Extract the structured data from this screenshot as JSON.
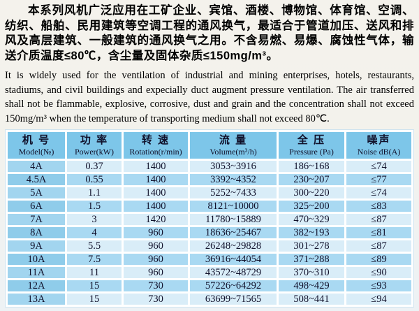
{
  "page": {
    "background_top": "#f4f2ec",
    "background_bottom": "#edf2f5"
  },
  "intro_zh": {
    "text": "本系列风机广泛应用在工矿企业、宾馆、酒楼、博物馆、体育馆、空调、纺织、船舶、民用建筑等空调工程的通风换气，最适合于管道加压、送风和排风及高层建筑、一般建筑的通风换气之用。不含易燃、易爆、腐蚀性气体，输送介质温度≤80℃，含尘量及固体杂质≤150mg/m³。"
  },
  "intro_en": {
    "text": "It is widely used for the ventilation of industrial and mining enterprises, hotels, restaurants, stadiums, and civil buildings and expecially duct augment pressure ventilation. The air transferred shall not be flammable, explosive, corrosive, dust and grain and the concentration shall not exceed 150mg/m³ when the temperature of transporting medium shall not exceed 80℃."
  },
  "spec_table": {
    "columns": [
      {
        "zh": "机 号",
        "en": "Model(№)"
      },
      {
        "zh": "功 率",
        "en": "Power(kW)"
      },
      {
        "zh": "转 速",
        "en": "Rotation(r/min)"
      },
      {
        "zh": "流 量",
        "en": "Volume(m³/h)"
      },
      {
        "zh": "全 压",
        "en": "Pressure (Pa)"
      },
      {
        "zh": "噪声",
        "en": "Noise dB(A)"
      }
    ],
    "rows": [
      [
        "4A",
        "0.37",
        "1400",
        "3053~3916",
        "186~168",
        "≤74"
      ],
      [
        "4.5A",
        "0.55",
        "1400",
        "3392~4352",
        "230~207",
        "≤77"
      ],
      [
        "5A",
        "1.1",
        "1400",
        "5252~7433",
        "300~220",
        "≤74"
      ],
      [
        "6A",
        "1.5",
        "1400",
        "8121~10000",
        "325~200",
        "≤83"
      ],
      [
        "7A",
        "3",
        "1420",
        "11780~15889",
        "470~329",
        "≤87"
      ],
      [
        "8A",
        "4",
        "960",
        "18636~25467",
        "382~193",
        "≤81"
      ],
      [
        "9A",
        "5.5",
        "960",
        "26248~29828",
        "301~278",
        "≤87"
      ],
      [
        "10A",
        "7.5",
        "960",
        "36916~44054",
        "371~288",
        "≤89"
      ],
      [
        "11A",
        "11",
        "960",
        "43572~48729",
        "370~310",
        "≤90"
      ],
      [
        "12A",
        "15",
        "730",
        "57226~64292",
        "498~429",
        "≤93"
      ],
      [
        "13A",
        "15",
        "730",
        "63699~71565",
        "508~441",
        "≤94"
      ]
    ],
    "colors": {
      "header_bg": "#7dc6e9",
      "row_light_bg": "#d9edf8",
      "row_light_model_bg": "#a2d5ef",
      "row_dark_bg": "#a9d9f2",
      "row_dark_model_bg": "#8fccea",
      "gap": "#ffffff",
      "text": "#10102a"
    }
  }
}
